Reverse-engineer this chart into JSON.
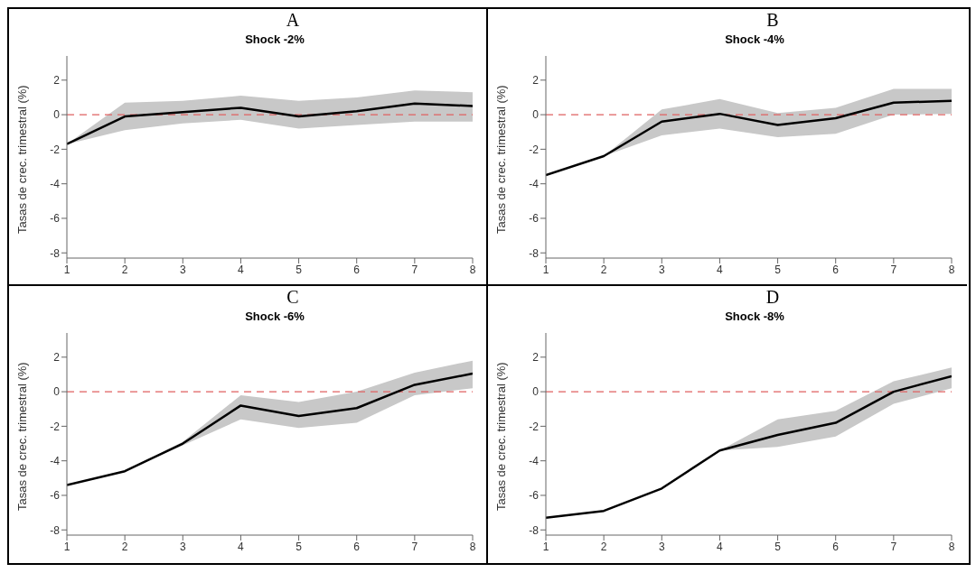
{
  "chart_data": [
    {
      "type": "line",
      "title": "A",
      "subtitle": "Shock -2%",
      "ylabel": "Tasas de crec. trimestral (%)",
      "x": [
        1,
        2,
        3,
        4,
        5,
        6,
        7,
        8
      ],
      "xlim": [
        1,
        8
      ],
      "xticks": [
        1,
        2,
        3,
        4,
        5,
        6,
        7,
        8
      ],
      "ylim": [
        -8.3,
        3.4
      ],
      "yticks": [
        -8,
        -6,
        -4,
        -2,
        0,
        2
      ],
      "series": [
        {
          "color": "#000000",
          "values": [
            -1.7,
            -0.1,
            0.15,
            0.4,
            -0.1,
            0.2,
            0.65,
            0.5
          ],
          "lower": [
            -1.7,
            -0.9,
            -0.5,
            -0.3,
            -0.8,
            -0.6,
            -0.4,
            -0.4
          ],
          "upper": [
            -1.7,
            0.7,
            0.8,
            1.1,
            0.8,
            1.0,
            1.4,
            1.3
          ]
        }
      ],
      "ref_lines": [
        {
          "axis": "y",
          "value": 0,
          "color": "#e06060",
          "line_style": "dashed"
        }
      ]
    },
    {
      "type": "line",
      "title": "B",
      "subtitle": "Shock -4%",
      "ylabel": "Tasas de crec. trimestral (%)",
      "x": [
        1,
        2,
        3,
        4,
        5,
        6,
        7,
        8
      ],
      "xlim": [
        1,
        8
      ],
      "xticks": [
        1,
        2,
        3,
        4,
        5,
        6,
        7,
        8
      ],
      "ylim": [
        -8.3,
        3.4
      ],
      "yticks": [
        -8,
        -6,
        -4,
        -2,
        0,
        2
      ],
      "series": [
        {
          "color": "#000000",
          "values": [
            -3.5,
            -2.4,
            -0.4,
            0.05,
            -0.6,
            -0.2,
            0.7,
            0.8
          ],
          "lower": [
            -3.5,
            -2.4,
            -1.2,
            -0.8,
            -1.3,
            -1.1,
            0,
            0.05
          ],
          "upper": [
            -3.5,
            -2.4,
            0.3,
            0.9,
            0.1,
            0.4,
            1.5,
            1.5
          ]
        }
      ],
      "ref_lines": [
        {
          "axis": "y",
          "value": 0,
          "color": "#e06060",
          "line_style": "dashed"
        }
      ]
    },
    {
      "type": "line",
      "title": "C",
      "subtitle": "Shock -6%",
      "ylabel": "Tasas de crec. trimestral (%)",
      "x": [
        1,
        2,
        3,
        4,
        5,
        6,
        7,
        8
      ],
      "xlim": [
        1,
        8
      ],
      "xticks": [
        1,
        2,
        3,
        4,
        5,
        6,
        7,
        8
      ],
      "ylim": [
        -8.3,
        3.4
      ],
      "yticks": [
        -8,
        -6,
        -4,
        -2,
        0,
        2
      ],
      "series": [
        {
          "color": "#000000",
          "values": [
            -5.4,
            -4.6,
            -3.0,
            -0.8,
            -1.4,
            -0.95,
            0.4,
            1.05
          ],
          "lower": [
            -5.4,
            -4.6,
            -3.1,
            -1.6,
            -2.1,
            -1.8,
            -0.2,
            0.2
          ],
          "upper": [
            -5.4,
            -4.6,
            -2.9,
            -0.2,
            -0.6,
            0,
            1.1,
            1.8
          ]
        }
      ],
      "ref_lines": [
        {
          "axis": "y",
          "value": 0,
          "color": "#e06060",
          "line_style": "dashed"
        }
      ]
    },
    {
      "type": "line",
      "title": "D",
      "subtitle": "Shock -8%",
      "ylabel": "Tasas de crec. trimestral (%)",
      "x": [
        1,
        2,
        3,
        4,
        5,
        6,
        7,
        8
      ],
      "xlim": [
        1,
        8
      ],
      "xticks": [
        1,
        2,
        3,
        4,
        5,
        6,
        7,
        8
      ],
      "ylim": [
        -8.3,
        3.4
      ],
      "yticks": [
        -8,
        -6,
        -4,
        -2,
        0,
        2
      ],
      "series": [
        {
          "color": "#000000",
          "values": [
            -7.3,
            -6.9,
            -5.6,
            -3.4,
            -2.5,
            -1.8,
            0.0,
            0.9
          ],
          "lower": [
            -7.3,
            -6.9,
            -5.6,
            -3.4,
            -3.2,
            -2.6,
            -0.7,
            0.2
          ],
          "upper": [
            -7.3,
            -6.9,
            -5.6,
            -3.4,
            -1.6,
            -1.1,
            0.6,
            1.4
          ]
        }
      ],
      "ref_lines": [
        {
          "axis": "y",
          "value": 0,
          "color": "#e06060",
          "line_style": "dashed"
        }
      ]
    }
  ]
}
